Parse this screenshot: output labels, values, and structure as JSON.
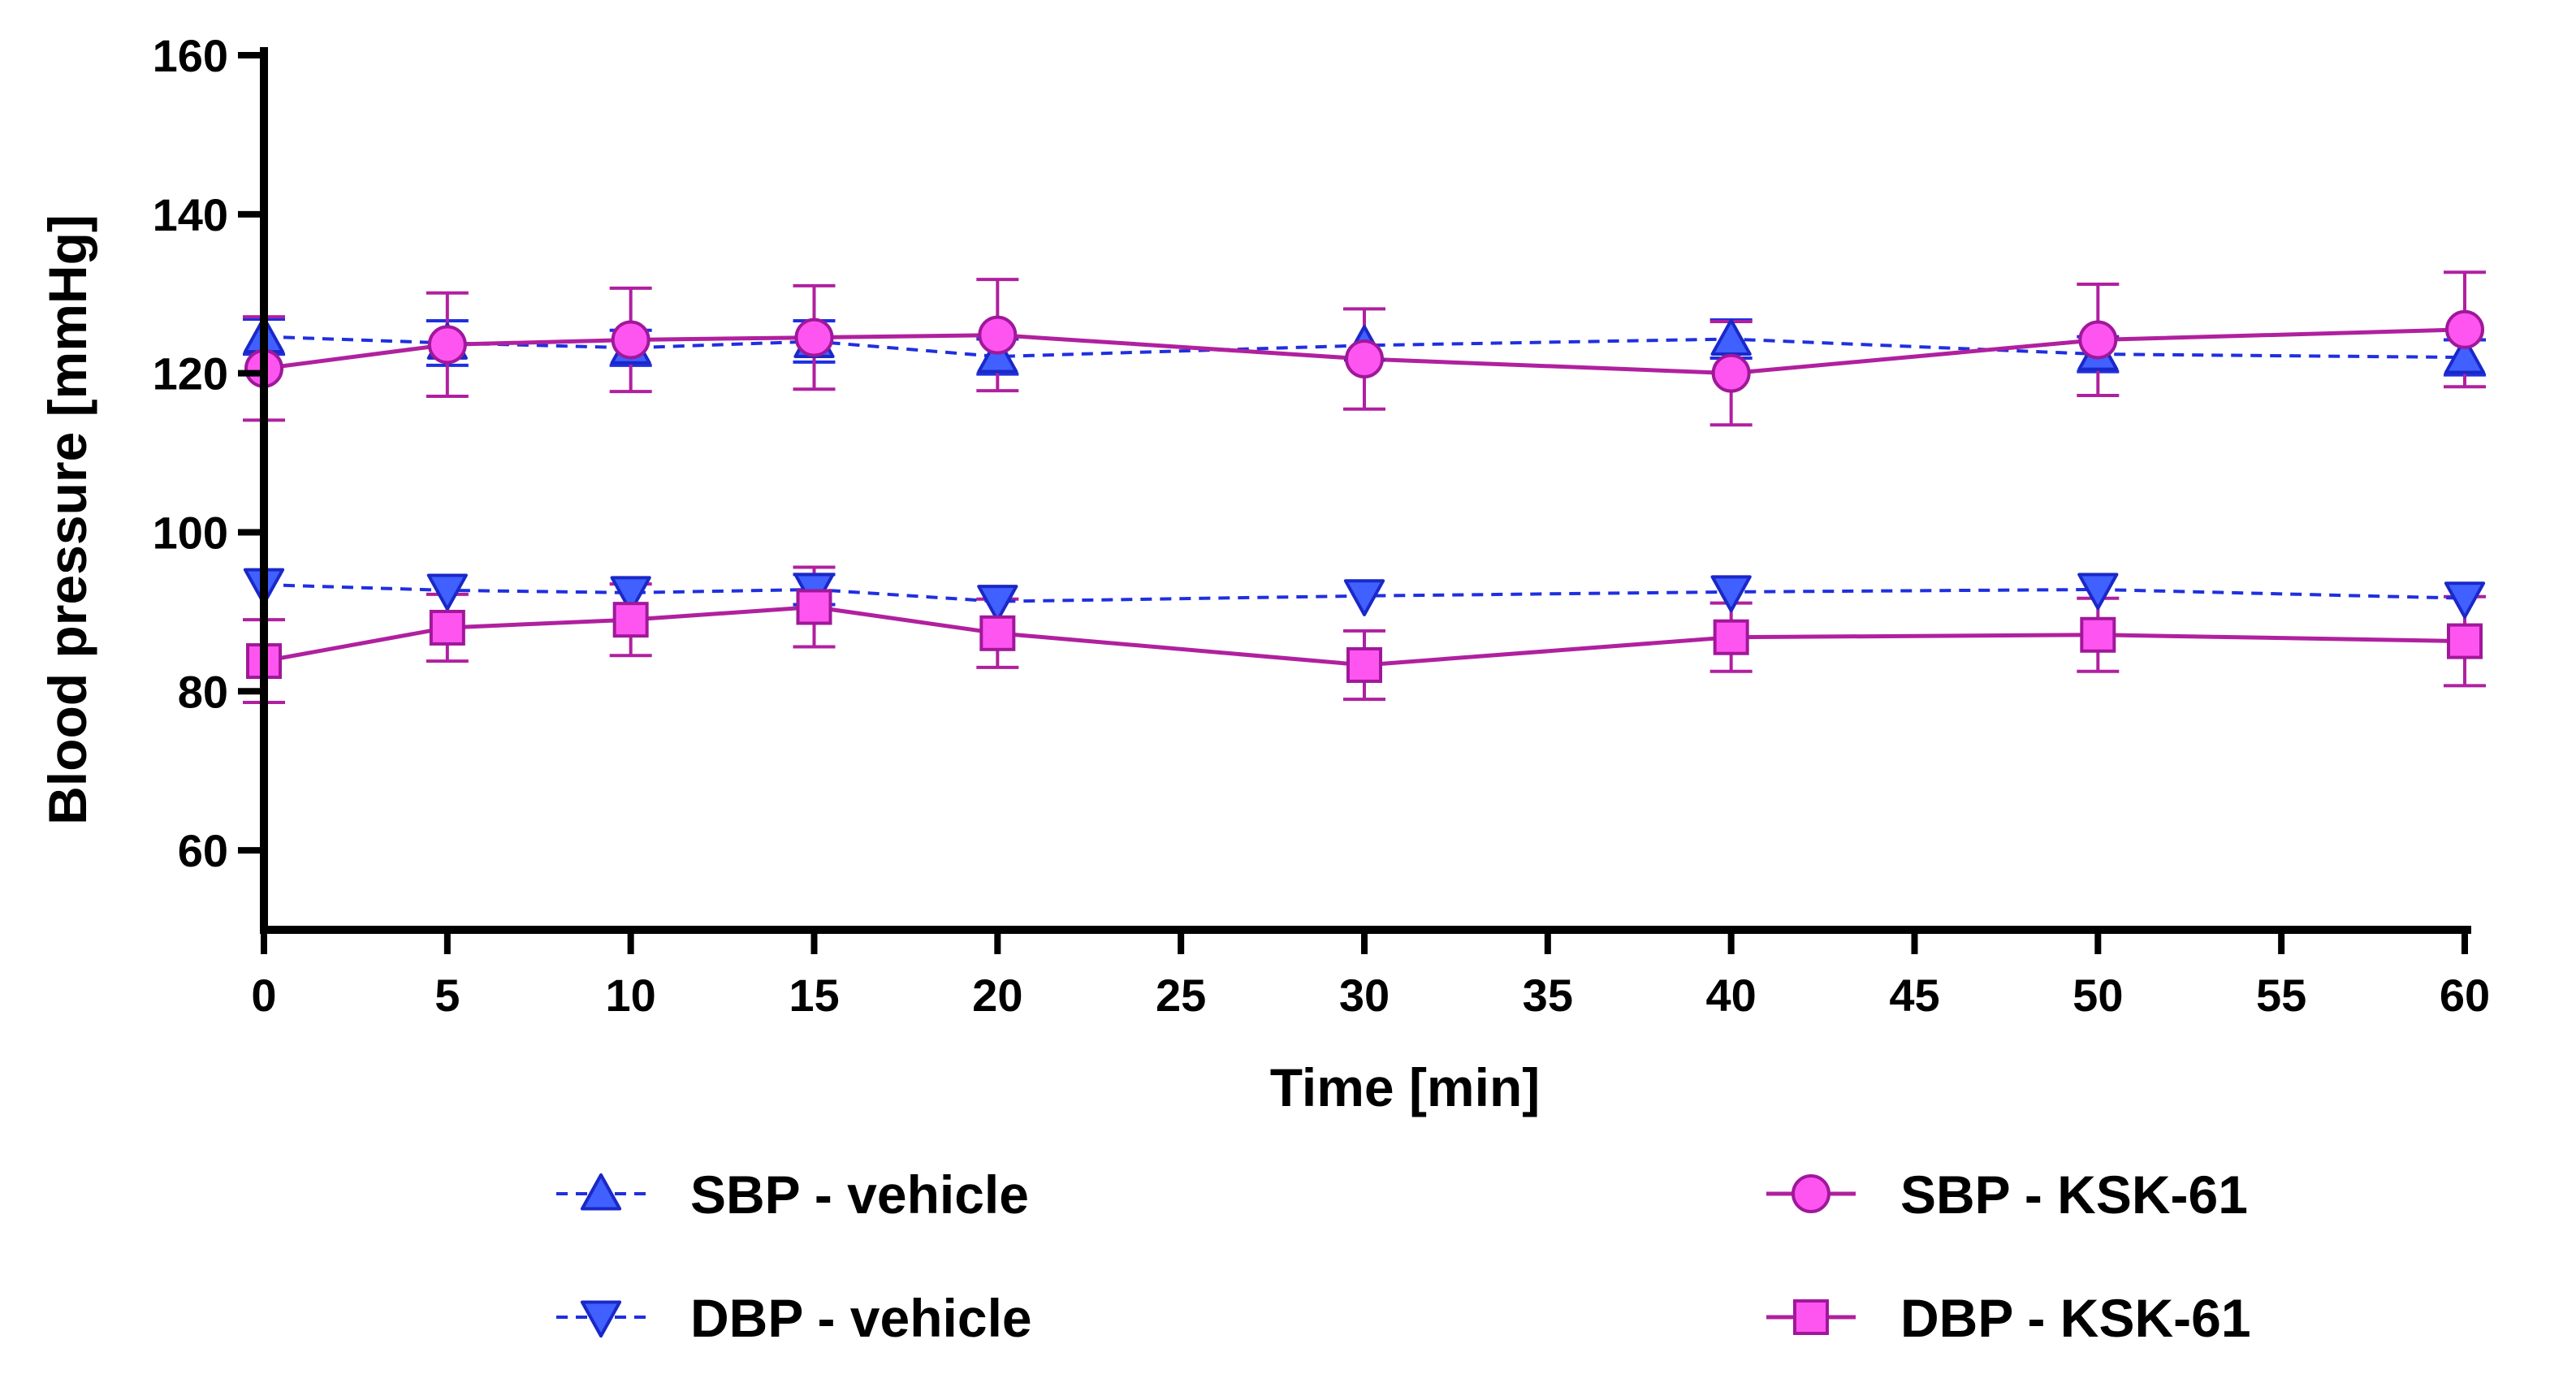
{
  "chart_data": {
    "type": "line",
    "title": "",
    "xlabel": "Time [min]",
    "ylabel": "Blood pressure [mmHg]",
    "xlim": [
      0,
      60
    ],
    "ylim": [
      50,
      160
    ],
    "xticks": [
      0,
      5,
      10,
      15,
      20,
      25,
      30,
      35,
      40,
      45,
      50,
      55,
      60
    ],
    "yticks": [
      60,
      80,
      100,
      120,
      140,
      160
    ],
    "grid": false,
    "legend_position": "bottom",
    "x": [
      0,
      5,
      10,
      15,
      20,
      30,
      40,
      50,
      60
    ],
    "series": [
      {
        "name": "SBP - vehicle",
        "marker": "triangle-up",
        "line_style": "dashed",
        "line_color": "#1f2fe0",
        "marker_fill": "#4060ff",
        "marker_stroke": "#1a28c8",
        "values": [
          124.6,
          123.8,
          123.2,
          124.0,
          122.1,
          123.5,
          124.3,
          122.4,
          122.0
        ],
        "error": [
          2.2,
          2.8,
          2.2,
          2.6,
          2.2,
          0,
          2.4,
          2.2,
          2.2
        ]
      },
      {
        "name": "DBP - vehicle",
        "marker": "triangle-down",
        "line_style": "dashed",
        "line_color": "#1f2fe0",
        "marker_fill": "#4060ff",
        "marker_stroke": "#1a28c8",
        "values": [
          93.4,
          92.7,
          92.4,
          92.8,
          91.3,
          92.0,
          92.5,
          92.8,
          91.7
        ],
        "error": [
          0,
          0,
          0,
          1.9,
          0,
          0,
          0,
          0,
          0
        ]
      },
      {
        "name": "SBP - KSK-61",
        "marker": "circle",
        "line_style": "solid",
        "line_color": "#b0209f",
        "marker_fill": "#ff55f0",
        "marker_stroke": "#a0189a",
        "values": [
          120.6,
          123.6,
          124.2,
          124.5,
          124.8,
          121.8,
          120.0,
          124.2,
          125.5
        ],
        "error": [
          6.5,
          6.5,
          6.5,
          6.5,
          7.0,
          6.3,
          6.5,
          7.0,
          7.2
        ]
      },
      {
        "name": "DBP - KSK-61",
        "marker": "square",
        "line_style": "solid",
        "line_color": "#b0209f",
        "marker_fill": "#ff55f0",
        "marker_stroke": "#a0189a",
        "values": [
          83.8,
          88.0,
          89.0,
          90.6,
          87.3,
          83.3,
          86.8,
          87.1,
          86.3
        ],
        "error": [
          5.2,
          4.2,
          4.5,
          5.0,
          4.3,
          4.3,
          4.3,
          4.6,
          5.6
        ]
      }
    ]
  }
}
